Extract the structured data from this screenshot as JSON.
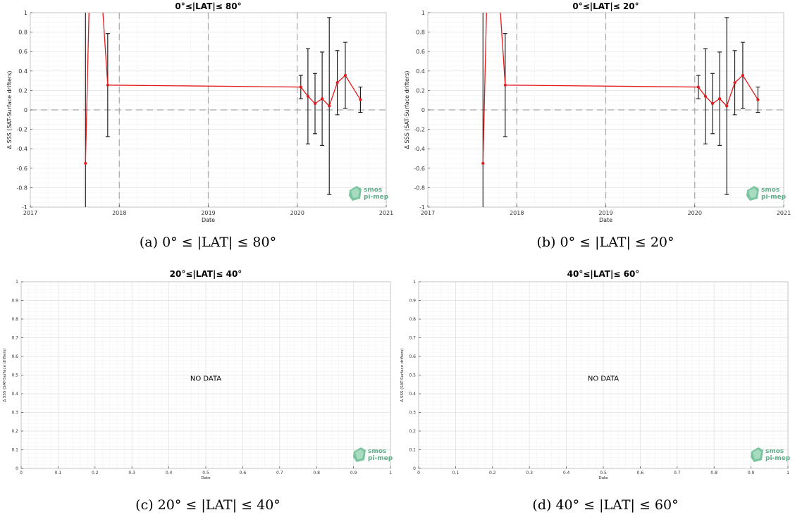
{
  "chart_data": [
    {
      "type": "line",
      "title": "0°≤|LAT|≤ 80°",
      "caption": "(a) 0° ≤ |LAT| ≤ 80°",
      "xlabel": "Date",
      "ylabel": "Δ SSS (SAT-Surface drifters)",
      "xlim": [
        2017,
        2021
      ],
      "ylim": [
        -1,
        1
      ],
      "xticks": [
        "2017",
        "2018",
        "2019",
        "2020",
        "2021"
      ],
      "yticks": [
        "-1",
        "-0.8",
        "-0.6",
        "-0.4",
        "-0.2",
        "0",
        "0.2",
        "0.4",
        "0.6",
        "0.8",
        "1"
      ],
      "grid": true,
      "vlines": [
        2018,
        2019,
        2020
      ],
      "hline": 0,
      "series": [
        {
          "color": "#e41a1c",
          "x": [
            2017.62,
            2017.7,
            2017.87,
            2020.04,
            2020.12,
            2020.2,
            2020.28,
            2020.36,
            2020.45,
            2020.54,
            2020.71
          ],
          "y": [
            -0.55,
            2.6,
            0.255,
            0.235,
            0.14,
            0.065,
            0.115,
            0.04,
            0.28,
            0.355,
            0.105
          ],
          "err": [
            2.2,
            0,
            0.53,
            0.12,
            0.49,
            0.31,
            0.48,
            0.91,
            0.33,
            0.34,
            0.13
          ]
        }
      ],
      "logo": [
        "smos",
        "pi-mep"
      ]
    },
    {
      "type": "line",
      "title": "0°≤|LAT|≤ 20°",
      "caption": "(b) 0° ≤ |LAT| ≤ 20°",
      "xlabel": "Date",
      "ylabel": "Δ SSS (SAT-Surface drifters)",
      "xlim": [
        2017,
        2021
      ],
      "ylim": [
        -1,
        1
      ],
      "xticks": [
        "2017",
        "2018",
        "2019",
        "2020",
        "2021"
      ],
      "yticks": [
        "-1",
        "-0.8",
        "-0.6",
        "-0.4",
        "-0.2",
        "0",
        "0.2",
        "0.4",
        "0.6",
        "0.8",
        "1"
      ],
      "grid": true,
      "vlines": [
        2018,
        2019,
        2020
      ],
      "hline": 0,
      "series": [
        {
          "color": "#e41a1c",
          "x": [
            2017.62,
            2017.7,
            2017.87,
            2020.04,
            2020.12,
            2020.2,
            2020.28,
            2020.36,
            2020.45,
            2020.54,
            2020.71
          ],
          "y": [
            -0.55,
            2.6,
            0.255,
            0.235,
            0.14,
            0.065,
            0.115,
            0.04,
            0.28,
            0.355,
            0.105
          ],
          "err": [
            2.2,
            0,
            0.53,
            0.12,
            0.49,
            0.31,
            0.48,
            0.91,
            0.33,
            0.34,
            0.13
          ]
        }
      ],
      "logo": [
        "smos",
        "pi-mep"
      ]
    },
    {
      "type": "line",
      "title": "20°≤|LAT|≤ 40°",
      "caption": "(c) 20° ≤ |LAT| ≤ 40°",
      "xlabel": "Date",
      "ylabel": "Δ SSS (SAT-Surface drifters)",
      "xlim": [
        0,
        1
      ],
      "ylim": [
        0,
        1
      ],
      "xticks": [
        "0",
        "0.1",
        "0.2",
        "0.3",
        "0.4",
        "0.5",
        "0.6",
        "0.7",
        "0.8",
        "0.9",
        "1"
      ],
      "yticks": [
        "0",
        "0.1",
        "0.2",
        "0.3",
        "0.4",
        "0.5",
        "0.6",
        "0.7",
        "0.8",
        "0.9",
        "1"
      ],
      "grid": true,
      "series": [],
      "annotation": "NO DATA",
      "logo": [
        "smos",
        "pi-mep"
      ]
    },
    {
      "type": "line",
      "title": "40°≤|LAT|≤ 60°",
      "caption": "(d) 40° ≤ |LAT| ≤ 60°",
      "xlabel": "Date",
      "ylabel": "Δ SSS (SAT-Surface drifters)",
      "xlim": [
        0,
        1
      ],
      "ylim": [
        0,
        1
      ],
      "xticks": [
        "0",
        "0.1",
        "0.2",
        "0.3",
        "0.4",
        "0.5",
        "0.6",
        "0.7",
        "0.8",
        "0.9",
        "1"
      ],
      "yticks": [
        "0",
        "0.1",
        "0.2",
        "0.3",
        "0.4",
        "0.5",
        "0.6",
        "0.7",
        "0.8",
        "0.9",
        "1"
      ],
      "grid": true,
      "series": [],
      "annotation": "NO DATA",
      "logo": [
        "smos",
        "pi-mep"
      ]
    }
  ]
}
